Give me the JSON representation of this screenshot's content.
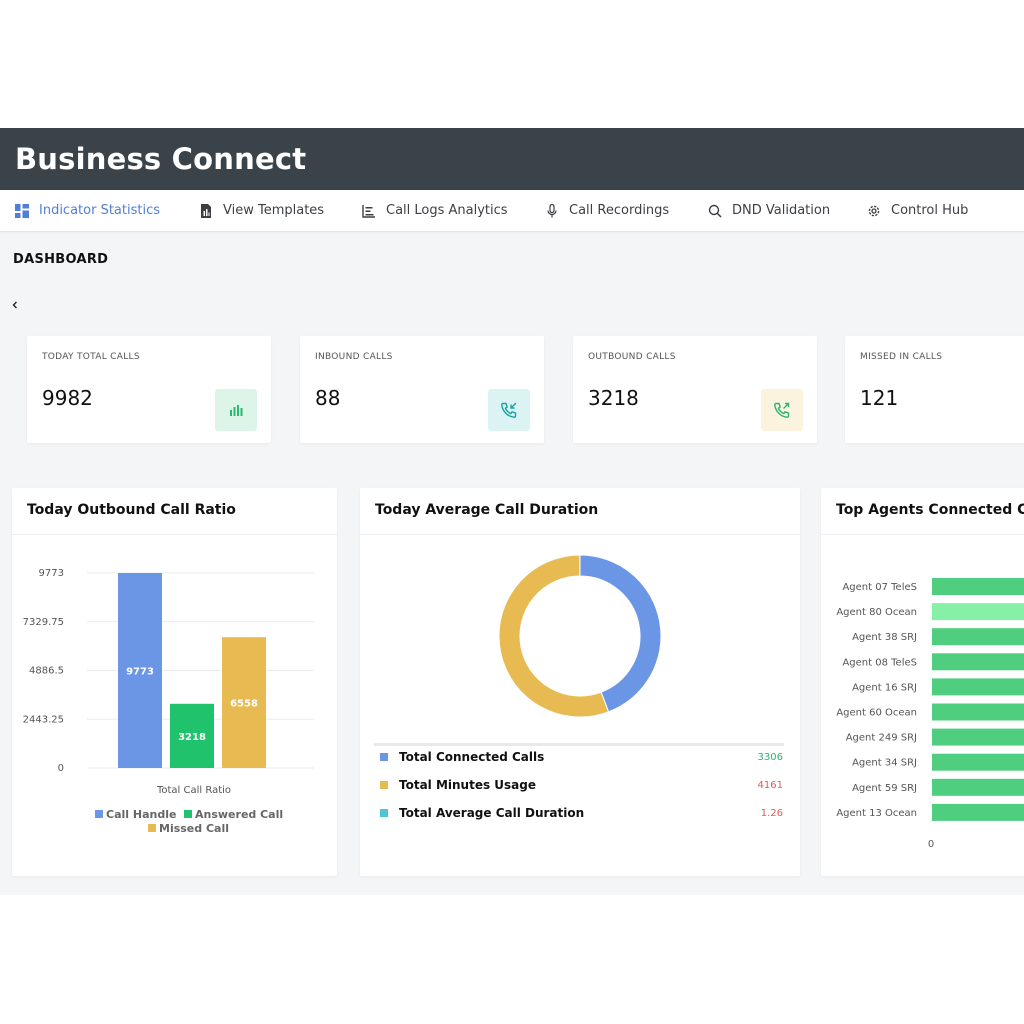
{
  "app": {
    "title": "Business Connect"
  },
  "nav": {
    "items": [
      {
        "label": "Indicator Statistics",
        "icon": "dashboard-grid-icon",
        "active": true
      },
      {
        "label": "View Templates",
        "icon": "document-icon",
        "active": false
      },
      {
        "label": "Call Logs Analytics",
        "icon": "list-chart-icon",
        "active": false
      },
      {
        "label": "Call Recordings",
        "icon": "microphone-icon",
        "active": false
      },
      {
        "label": "DND Validation",
        "icon": "search-icon",
        "active": false
      },
      {
        "label": "Control Hub",
        "icon": "gear-icon",
        "active": false
      }
    ]
  },
  "dashboard": {
    "title": "DASHBOARD",
    "back_icon": "chevron-left-icon"
  },
  "stats": [
    {
      "label": "TODAY TOTAL CALLS",
      "value": "9982",
      "icon": "bar-chart-icon",
      "icon_bg": "#dcf5e8",
      "icon_color": "#2bb673"
    },
    {
      "label": "INBOUND CALLS",
      "value": "88",
      "icon": "phone-incoming-icon",
      "icon_bg": "#dcf3f3",
      "icon_color": "#1aa3a3"
    },
    {
      "label": "OUTBOUND CALLS",
      "value": "3218",
      "icon": "phone-outgoing-icon",
      "icon_bg": "#fbf3dd",
      "icon_color": "#2bb673"
    },
    {
      "label": "MISSED IN CALLS",
      "value": "121",
      "icon": "phone-missed-icon",
      "icon_bg": "#fde8e8",
      "icon_color": "#e05a5a"
    }
  ],
  "panels": {
    "outbound_ratio": {
      "title": "Today Outbound Call Ratio"
    },
    "avg_duration": {
      "title": "Today Average Call Duration"
    },
    "top_agents": {
      "title": "Top Agents Connected Ca"
    }
  },
  "chart_data": [
    {
      "type": "bar",
      "categories": [
        "Call Handle",
        "Answered Call",
        "Missed Call"
      ],
      "values": [
        9773,
        3218,
        6558
      ],
      "data_labels": [
        "9773",
        "3218",
        "6558"
      ],
      "colors": [
        "#6b95e5",
        "#20c26c",
        "#e8bb52"
      ],
      "xlabel": "Total Call Ratio",
      "ylabel": "",
      "yticks": [
        "9773",
        "7329.75",
        "4886.5",
        "2443.25",
        "0"
      ],
      "ylim": [
        0,
        9773
      ],
      "grid": true,
      "legend": [
        "Call Handle",
        "Answered Call",
        "Missed Call"
      ],
      "legend_position": "bottom"
    },
    {
      "type": "pie",
      "variant": "donut",
      "categories": [
        "Total Connected Calls",
        "Total Minutes Usage",
        "Total Average Call Duration"
      ],
      "values": [
        3306,
        4161,
        1.26
      ],
      "value_labels": [
        "3306",
        "4161",
        "1.26"
      ],
      "colors": [
        "#6b95e5",
        "#e8bb52",
        "#4fc3d9"
      ],
      "value_colors": [
        "#2bb673",
        "#e05a5a",
        "#e05a5a"
      ],
      "legend_position": "bottom"
    },
    {
      "type": "bar",
      "orientation": "horizontal",
      "categories": [
        "Agent 07 TeleS",
        "Agent 80 Ocean",
        "Agent 38 SRJ",
        "Agent 08 TeleS",
        "Agent 16 SRJ",
        "Agent 60 Ocean",
        "Agent 249 SRJ",
        "Agent 34 SRJ",
        "Agent 59 SRJ",
        "Agent 13 Ocean"
      ],
      "colors": [
        "#4fce7f",
        "#86f0a6",
        "#4fce7f",
        "#4fce7f",
        "#4fce7f",
        "#4fce7f",
        "#4fce7f",
        "#4fce7f",
        "#4fce7f",
        "#4fce7f"
      ],
      "xticks": [
        "0"
      ],
      "truncated": true
    }
  ]
}
